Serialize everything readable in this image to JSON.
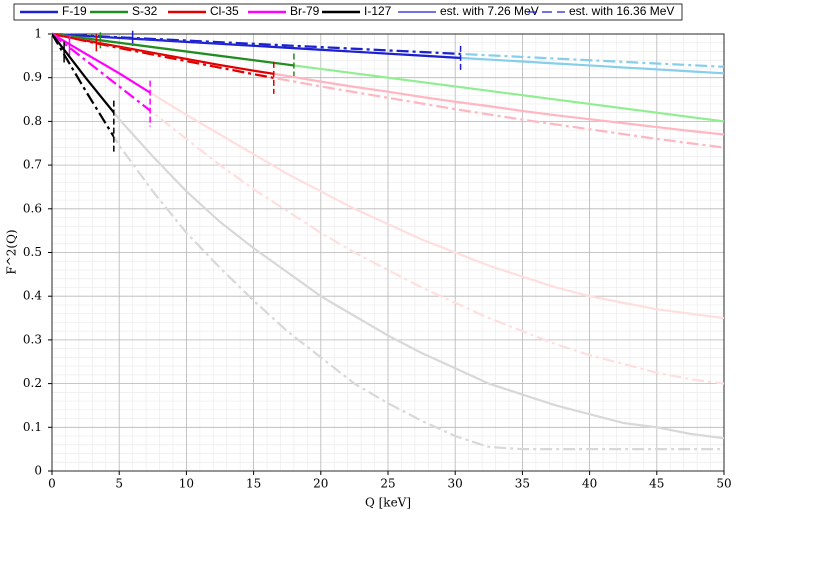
{
  "chart_data": {
    "type": "line",
    "xlabel": "Q [keV]",
    "ylabel": "F^2(Q)",
    "x": [
      0,
      2.5,
      5,
      7.5,
      10,
      12.5,
      15,
      17.5,
      20,
      22.5,
      25,
      27.5,
      30,
      32.5,
      35,
      37.5,
      40,
      42.5,
      45,
      47.5,
      50
    ],
    "xlim": [
      0,
      50
    ],
    "ylim": [
      0,
      1
    ],
    "xticks": [
      0,
      5,
      10,
      15,
      20,
      25,
      30,
      35,
      40,
      45,
      50
    ],
    "yticks": [
      0,
      0.1,
      0.2,
      0.3,
      0.4,
      0.5,
      0.6,
      0.7,
      0.8,
      0.9,
      1
    ],
    "grid": true,
    "line_styles": [
      "est. with 7.26 MeV",
      "est. with 16.36 MeV"
    ],
    "series": [
      {
        "name": "F-19",
        "color": "#1f1fd0",
        "faded_color": "#87ceeb",
        "limits": [
          6,
          30.4
        ],
        "values": [
          1,
          0.9955,
          0.991,
          0.9865,
          0.982,
          0.9775,
          0.973,
          0.9685,
          0.964,
          0.9595,
          0.955,
          0.9505,
          0.946,
          0.9415,
          0.937,
          0.9325,
          0.928,
          0.9235,
          0.919,
          0.9145,
          0.91
        ],
        "dashed_values": [
          1,
          0.99625,
          0.9925,
          0.98875,
          0.985,
          0.98125,
          0.9775,
          0.97375,
          0.97,
          0.96625,
          0.9625,
          0.95875,
          0.955,
          0.95125,
          0.9475,
          0.94375,
          0.94,
          0.93625,
          0.9325,
          0.92875,
          0.925
        ]
      },
      {
        "name": "S-32",
        "color": "#228b22",
        "faded_color": "#90ee90",
        "limits": [
          3.6,
          18
        ],
        "values": [
          1,
          0.99,
          0.98,
          0.97,
          0.96,
          0.95,
          0.94,
          0.93,
          0.92,
          0.91,
          0.9,
          0.89,
          0.88,
          0.87,
          0.86,
          0.85,
          0.84,
          0.83,
          0.82,
          0.81,
          0.8
        ],
        "dashed_values": null
      },
      {
        "name": "Cl-35",
        "color": "#e00000",
        "faded_color": "#ffb6c1",
        "limits": [
          3.3,
          16.5
        ],
        "values": [
          1,
          0.985,
          0.971,
          0.957,
          0.943,
          0.929,
          0.916,
          0.904,
          0.891,
          0.879,
          0.868,
          0.856,
          0.845,
          0.835,
          0.824,
          0.814,
          0.805,
          0.796,
          0.787,
          0.778,
          0.77
        ],
        "dashed_values": [
          1,
          0.984,
          0.968,
          0.953,
          0.938,
          0.923,
          0.908,
          0.894,
          0.88,
          0.867,
          0.854,
          0.841,
          0.828,
          0.816,
          0.804,
          0.793,
          0.782,
          0.771,
          0.76,
          0.75,
          0.74
        ]
      },
      {
        "name": "Br-79",
        "color": "#ff00ff",
        "faded_color": "#ffdede",
        "limits": [
          1.3,
          7.3
        ],
        "values": [
          1,
          0.955,
          0.91,
          0.862,
          0.815,
          0.77,
          0.725,
          0.68,
          0.64,
          0.6,
          0.565,
          0.53,
          0.5,
          0.47,
          0.445,
          0.42,
          0.4,
          0.385,
          0.37,
          0.36,
          0.35
        ],
        "dashed_values": [
          1,
          0.94,
          0.88,
          0.82,
          0.76,
          0.7,
          0.645,
          0.595,
          0.545,
          0.5,
          0.46,
          0.42,
          0.385,
          0.35,
          0.32,
          0.29,
          0.265,
          0.245,
          0.225,
          0.21,
          0.2
        ]
      },
      {
        "name": "I-127",
        "color": "#000000",
        "faded_color": "#d8d8d8",
        "limits": [
          0.9,
          4.6
        ],
        "values": [
          1,
          0.9,
          0.805,
          0.72,
          0.64,
          0.57,
          0.51,
          0.455,
          0.4,
          0.355,
          0.31,
          0.27,
          0.235,
          0.2,
          0.175,
          0.15,
          0.13,
          0.11,
          0.1,
          0.085,
          0.075
        ],
        "dashed_values": [
          1,
          0.87,
          0.745,
          0.64,
          0.545,
          0.465,
          0.39,
          0.32,
          0.26,
          0.2,
          0.155,
          0.115,
          0.08,
          0.055,
          0.05,
          0.05,
          0.05,
          0.05,
          0.05,
          0.05,
          0.05
        ]
      }
    ]
  }
}
